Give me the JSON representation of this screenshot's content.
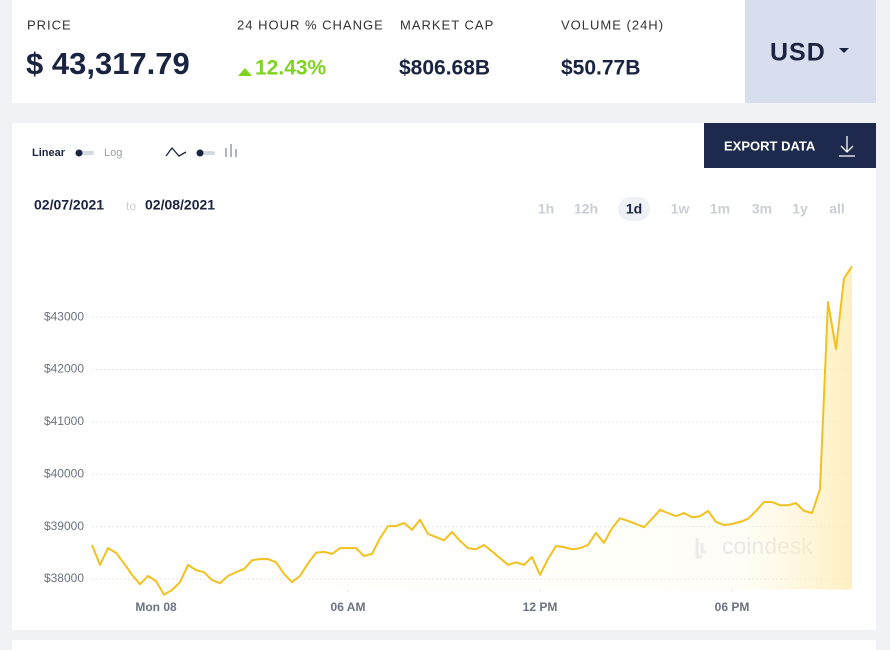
{
  "header": {
    "price_label": "PRICE",
    "price": "$ 43,317.79",
    "change_label": "24 HOUR % CHANGE",
    "change": "12.43%",
    "market_cap_label": "MARKET CAP",
    "market_cap": "$806.68B",
    "volume_label": "VOLUME (24H)",
    "volume": "$50.77B",
    "currency": "USD"
  },
  "controls": {
    "linear": "Linear",
    "log": "Log",
    "export": "EXPORT DATA",
    "date_from": "02/07/2021",
    "date_sep": "to",
    "date_to": "02/08/2021",
    "ranges": [
      "1h",
      "12h",
      "1d",
      "1w",
      "1m",
      "3m",
      "1y",
      "all"
    ],
    "selected_range": "1d"
  },
  "chart_data": {
    "type": "line",
    "color": "#f2c11f",
    "grid": true,
    "watermark": "coindesk",
    "x": [
      -2,
      -1.75,
      -1.5,
      -1.25,
      -1,
      -0.75,
      -0.5,
      -0.25,
      0,
      0.25,
      0.5,
      0.75,
      1,
      1.25,
      1.5,
      1.75,
      2,
      2.25,
      2.5,
      2.75,
      3,
      3.25,
      3.5,
      3.75,
      4,
      4.25,
      4.5,
      4.75,
      5,
      5.25,
      5.5,
      5.75,
      6,
      6.25,
      6.5,
      6.75,
      7,
      7.25,
      7.5,
      7.75,
      8,
      8.25,
      8.5,
      8.75,
      9,
      9.25,
      9.5,
      9.75,
      10,
      10.25,
      10.5,
      10.75,
      11,
      11.25,
      11.5,
      11.75,
      12,
      12.25,
      12.5,
      12.75,
      13,
      13.25,
      13.5,
      13.75,
      14,
      14.25,
      14.5,
      14.75,
      15,
      15.25,
      15.5,
      15.75,
      16,
      16.25,
      16.5,
      16.75,
      17,
      17.25,
      17.5,
      17.75,
      18,
      18.25,
      18.5,
      18.75,
      19,
      19.25,
      19.5,
      19.75,
      20,
      20.25,
      20.5,
      20.75,
      21,
      21.25,
      21.5,
      21.75
    ],
    "values": [
      38650,
      38270,
      38590,
      38500,
      38300,
      38080,
      37900,
      38060,
      37960,
      37700,
      37790,
      37940,
      38270,
      38170,
      38130,
      37980,
      37920,
      38060,
      38130,
      38190,
      38360,
      38380,
      38380,
      38320,
      38100,
      37940,
      38060,
      38300,
      38500,
      38520,
      38480,
      38590,
      38590,
      38590,
      38440,
      38480,
      38780,
      39010,
      39010,
      39070,
      38940,
      39130,
      38860,
      38800,
      38740,
      38900,
      38730,
      38590,
      38570,
      38650,
      38530,
      38400,
      38270,
      38320,
      38270,
      38420,
      38080,
      38380,
      38630,
      38610,
      38570,
      38590,
      38650,
      38880,
      38690,
      38970,
      39160,
      39110,
      39050,
      38990,
      39150,
      39320,
      39260,
      39200,
      39260,
      39180,
      39200,
      39300,
      39090,
      39030,
      39050,
      39090,
      39150,
      39300,
      39470,
      39470,
      39410,
      39410,
      39450,
      39300,
      39260,
      39720,
      43290,
      42390,
      43740,
      43970
    ],
    "xlim": [
      -2,
      21.75
    ],
    "xticks": [
      {
        "value": 0,
        "label": "Mon 08"
      },
      {
        "value": 6,
        "label": "06 AM"
      },
      {
        "value": 12,
        "label": "12 PM"
      },
      {
        "value": 18,
        "label": "06 PM"
      }
    ],
    "ylim": [
      37800,
      44300
    ],
    "yticks": [
      {
        "value": 38000,
        "label": "$38000"
      },
      {
        "value": 39000,
        "label": "$39000"
      },
      {
        "value": 40000,
        "label": "$40000"
      },
      {
        "value": 41000,
        "label": "$41000"
      },
      {
        "value": 42000,
        "label": "$42000"
      },
      {
        "value": 43000,
        "label": "$43000"
      }
    ]
  }
}
